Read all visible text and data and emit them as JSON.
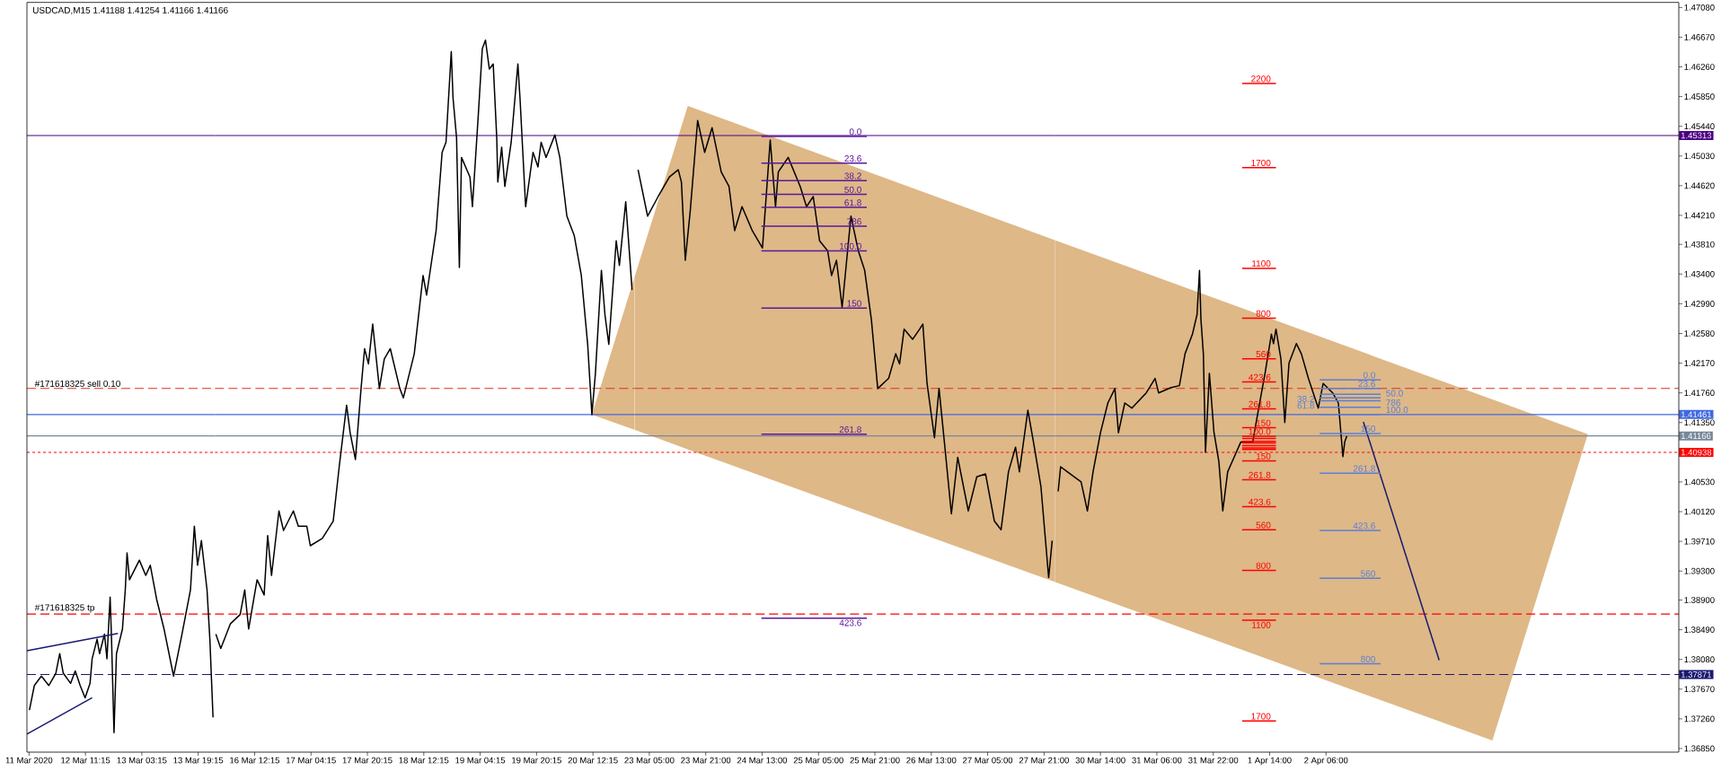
{
  "chart_data": [
    {
      "type": "line",
      "title": "USDCAD,M15 1.41188 1.41254 1.41166 1.41166",
      "xlim": [
        "2020-03-11T18:39",
        "2020-03-14T00:00"
      ],
      "ylim": [
        1.368,
        1.4715
      ],
      "tick_labels": "x",
      "xticks": [
        {
          "value": "2020-03-11T19:15",
          "label": "11 Mar 2020"
        },
        {
          "value": "2020-03-12T11:15",
          "label": "12 Mar 11:15"
        },
        {
          "value": "2020-03-13T03:15",
          "label": "13 Mar 03:15"
        },
        {
          "value": "2020-03-13T19:15",
          "label": "13 Mar 19:15"
        }
      ],
      "series": [
        {
          "color": "#000000",
          "x": [
            "2020-03-11T19:21",
            "2020-03-11T20:45",
            "2020-03-11T22:45",
            "2020-03-12T00:51",
            "2020-03-12T02:51",
            "2020-03-12T03:57",
            "2020-03-12T04:57",
            "2020-03-12T07:03",
            "2020-03-12T08:21",
            "2020-03-12T09:45",
            "2020-03-12T11:09",
            "2020-03-12T12:33",
            "2020-03-12T13:09",
            "2020-03-12T14:33",
            "2020-03-12T15:15",
            "2020-03-12T16:39",
            "2020-03-12T17:21",
            "2020-03-12T18:15",
            "2020-03-12T18:39",
            "2020-03-12T19:21",
            "2020-03-12T20:03",
            "2020-03-12T21:45",
            "2020-03-12T22:33",
            "2020-03-12T23:03",
            "2020-03-12T23:45",
            "2020-03-13T02:33",
            "2020-03-13T04:21",
            "2020-03-13T05:39",
            "2020-03-13T07:27",
            "2020-03-13T09:33",
            "2020-03-13T12:15",
            "2020-03-13T14:39",
            "2020-03-13T17:03",
            "2020-03-13T18:09",
            "2020-03-13T19:03",
            "2020-03-13T20:09",
            "2020-03-13T21:45",
            "2020-03-13T22:33",
            "2020-03-13T23:27"
          ],
          "values": [
            1.3738,
            1.3772,
            1.3785,
            1.3772,
            1.3789,
            1.3816,
            1.3789,
            1.3775,
            1.3792,
            1.3772,
            1.3755,
            1.3775,
            1.3809,
            1.3836,
            1.3816,
            1.3843,
            1.3809,
            1.3894,
            1.3836,
            1.3707,
            1.3816,
            1.385,
            1.3904,
            1.3955,
            1.3918,
            1.3945,
            1.3924,
            1.3938,
            1.3891,
            1.385,
            1.3785,
            1.3843,
            1.3904,
            1.3992,
            1.3938,
            1.3972,
            1.3904,
            1.3836,
            1.3728
          ]
        },
        {
          "color": "#191970",
          "x": [
            "2020-03-11T18:39",
            "2020-03-12T20:27"
          ],
          "values": [
            1.382,
            1.3844
          ]
        },
        {
          "color": "#191970",
          "x": [
            "2020-03-11T18:39",
            "2020-03-12T13:09"
          ],
          "values": [
            1.3705,
            1.3755
          ]
        }
      ],
      "ref_lines": [
        {
          "axis": "y",
          "value": 1.45313,
          "color": "#4b0082",
          "line_style": "solid"
        },
        {
          "axis": "y",
          "value": 1.41822,
          "label": "#171618325 sell 0.10",
          "color": "#e0301e",
          "line_style": "dashed"
        },
        {
          "axis": "y",
          "value": 1.41461,
          "color": "#4169e1",
          "line_style": "solid"
        },
        {
          "axis": "y",
          "value": 1.41166,
          "color": "#778899",
          "line_style": "solid"
        },
        {
          "axis": "y",
          "value": 1.40938,
          "color": "#ff0000",
          "line_style": "dotted"
        },
        {
          "axis": "y",
          "value": 1.38707,
          "label": "#171618325 tp",
          "color": "#ff0000",
          "line_style": "dashed"
        },
        {
          "axis": "y",
          "value": 1.37871,
          "color": "#191970",
          "line_style": "dashed"
        }
      ]
    },
    {
      "type": "line",
      "xlim": [
        "2020-03-16T01:00",
        "2020-03-21T00:00"
      ],
      "ylim": [
        1.368,
        1.4715
      ],
      "tick_labels": "x",
      "xticks": [
        {
          "value": "2020-03-16T12:15",
          "label": "16 Mar 12:15"
        },
        {
          "value": "2020-03-17T04:15",
          "label": "17 Mar 04:15"
        },
        {
          "value": "2020-03-17T20:15",
          "label": "17 Mar 20:15"
        },
        {
          "value": "2020-03-18T12:15",
          "label": "18 Mar 12:15"
        },
        {
          "value": "2020-03-19T04:15",
          "label": "19 Mar 04:15"
        },
        {
          "value": "2020-03-19T20:15",
          "label": "19 Mar 20:15"
        },
        {
          "value": "2020-03-20T12:15",
          "label": "20 Mar 12:15"
        }
      ],
      "series": [
        {
          "type": "area",
          "color": "#deb887",
          "x": [
            "2020-03-20T11:57",
            "2020-03-21T00:00"
          ],
          "values": [
            null,
            null
          ],
          "lower": [
            1.4146,
            1.4125
          ],
          "upper": [
            1.4146,
            1.4335
          ]
        },
        {
          "color": "#000000",
          "x": [
            "2020-03-16T01:15",
            "2020-03-16T02:39",
            "2020-03-16T05:21",
            "2020-03-16T08:09",
            "2020-03-16T09:27",
            "2020-03-16T10:33",
            "2020-03-16T12:57",
            "2020-03-16T14:57",
            "2020-03-16T15:57",
            "2020-03-16T17:03",
            "2020-03-16T19:09",
            "2020-03-16T20:27",
            "2020-03-16T23:15",
            "2020-03-17T00:39",
            "2020-03-17T03:03",
            "2020-03-17T04:03",
            "2020-03-17T07:27",
            "2020-03-17T10:33",
            "2020-03-17T12:15",
            "2020-03-17T14:21",
            "2020-03-17T15:21",
            "2020-03-17T16:51",
            "2020-03-17T18:27",
            "2020-03-17T19:27",
            "2020-03-17T20:33",
            "2020-03-17T21:45",
            "2020-03-17T23:39",
            "2020-03-18T01:03",
            "2020-03-18T02:45",
            "2020-03-18T05:27",
            "2020-03-18T06:27",
            "2020-03-18T09:33",
            "2020-03-18T12:03",
            "2020-03-18T13:03",
            "2020-03-18T15:45",
            "2020-03-18T17:27",
            "2020-03-18T18:33",
            "2020-03-18T20:03",
            "2020-03-18T20:33",
            "2020-03-18T21:33",
            "2020-03-18T22:21",
            "2020-03-18T22:57",
            "2020-03-19T01:21",
            "2020-03-19T02:03",
            "2020-03-19T03:45",
            "2020-03-19T04:51",
            "2020-03-19T05:45",
            "2020-03-19T06:51",
            "2020-03-19T07:57",
            "2020-03-19T08:57",
            "2020-03-19T09:15",
            "2020-03-19T10:21",
            "2020-03-19T11:15",
            "2020-03-19T13:03",
            "2020-03-19T14:57",
            "2020-03-19T15:33",
            "2020-03-19T17:09",
            "2020-03-19T19:15",
            "2020-03-19T20:39",
            "2020-03-19T21:33",
            "2020-03-19T22:57",
            "2020-03-20T01:27",
            "2020-03-20T02:51",
            "2020-03-20T04:51",
            "2020-03-20T06:57",
            "2020-03-20T08:57",
            "2020-03-20T10:45",
            "2020-03-20T11:57",
            "2020-03-20T12:57",
            "2020-03-20T14:39",
            "2020-03-20T15:39",
            "2020-03-20T16:45",
            "2020-03-20T18:51",
            "2020-03-20T19:45",
            "2020-03-20T21:33",
            "2020-03-20T23:21"
          ],
          "values": [
            1.3843,
            1.3823,
            1.3857,
            1.387,
            1.3904,
            1.385,
            1.3918,
            1.3897,
            1.3979,
            1.3924,
            1.4013,
            1.3986,
            1.4013,
            1.3992,
            1.3992,
            1.3965,
            1.3975,
            1.3999,
            1.4074,
            1.4159,
            1.4121,
            1.4084,
            1.4182,
            1.4237,
            1.4216,
            1.4271,
            1.4182,
            1.4223,
            1.4237,
            1.4182,
            1.4169,
            1.423,
            1.4338,
            1.4311,
            1.44,
            1.4508,
            1.4522,
            1.4647,
            1.4583,
            1.4528,
            1.4349,
            1.4501,
            1.4474,
            1.4433,
            1.4562,
            1.4651,
            1.4663,
            1.4623,
            1.463,
            1.4528,
            1.4467,
            1.4515,
            1.4461,
            1.4522,
            1.463,
            1.4583,
            1.4433,
            1.4508,
            1.4488,
            1.4522,
            1.4501,
            1.4532,
            1.4501,
            1.442,
            1.4393,
            1.4338,
            1.4243,
            1.4146,
            1.4203,
            1.4345,
            1.4284,
            1.4243,
            1.4386,
            1.4352,
            1.444,
            1.4318
          ]
        }
      ],
      "ref_lines": [
        {
          "axis": "y",
          "value": 1.45313,
          "color": "#4b0082",
          "line_style": "solid"
        },
        {
          "axis": "y",
          "value": 1.41822,
          "color": "#e0301e",
          "line_style": "dashed"
        },
        {
          "axis": "y",
          "value": 1.41461,
          "color": "#4169e1",
          "line_style": "solid"
        },
        {
          "axis": "y",
          "value": 1.41166,
          "color": "#778899",
          "line_style": "solid"
        },
        {
          "axis": "y",
          "value": 1.40938,
          "color": "#ff0000",
          "line_style": "dotted"
        },
        {
          "axis": "y",
          "value": 1.38707,
          "color": "#ff0000",
          "line_style": "dashed"
        },
        {
          "axis": "y",
          "value": 1.37871,
          "color": "#191970",
          "line_style": "dashed"
        }
      ]
    },
    {
      "type": "line",
      "xlim": [
        "2020-03-23T00:45",
        "2020-03-28T00:00"
      ],
      "ylim": [
        1.368,
        1.4715
      ],
      "tick_labels": "x",
      "xticks": [
        {
          "value": "2020-03-23T05:00",
          "label": "23 Mar 05:00"
        },
        {
          "value": "2020-03-23T21:00",
          "label": "23 Mar 21:00"
        },
        {
          "value": "2020-03-24T13:00",
          "label": "24 Mar 13:00"
        },
        {
          "value": "2020-03-25T05:00",
          "label": "25 Mar 05:00"
        },
        {
          "value": "2020-03-25T21:00",
          "label": "25 Mar 21:00"
        },
        {
          "value": "2020-03-26T13:00",
          "label": "26 Mar 13:00"
        },
        {
          "value": "2020-03-27T05:00",
          "label": "27 Mar 05:00"
        },
        {
          "value": "2020-03-27T21:00",
          "label": "27 Mar 21:00"
        }
      ],
      "series": [
        {
          "type": "area",
          "color": "#deb887",
          "x": [
            "2020-03-23T00:45",
            "2020-03-23T15:54",
            "2020-03-28T00:00"
          ],
          "values": [
            null,
            null,
            null
          ],
          "lower": [
            1.4125,
            1.4098,
            1.3915
          ],
          "upper": [
            1.4335,
            1.4572,
            1.4387
          ]
        },
        {
          "color": "#000000",
          "x": [
            "2020-03-23T01:48",
            "2020-03-23T04:30",
            "2020-03-23T07:30",
            "2020-03-23T10:42",
            "2020-03-23T13:12",
            "2020-03-23T14:06",
            "2020-03-23T15:12",
            "2020-03-23T16:36",
            "2020-03-23T18:42",
            "2020-03-23T20:42",
            "2020-03-23T22:48",
            "2020-03-24T01:24",
            "2020-03-24T03:36",
            "2020-03-24T05:12",
            "2020-03-24T07:18",
            "2020-03-24T10:12",
            "2020-03-24T13:06",
            "2020-03-24T15:18",
            "2020-03-24T16:48",
            "2020-03-24T17:36",
            "2020-03-24T20:24",
            "2020-03-24T23:48",
            "2020-03-25T01:36",
            "2020-03-25T03:30",
            "2020-03-25T05:18",
            "2020-03-25T07:36",
            "2020-03-25T08:42",
            "2020-03-25T10:06",
            "2020-03-25T11:42",
            "2020-03-25T14:12",
            "2020-03-25T16:18",
            "2020-03-25T18:06",
            "2020-03-25T20:00",
            "2020-03-25T21:48",
            "2020-03-26T00:54",
            "2020-03-26T02:54",
            "2020-03-26T04:00",
            "2020-03-26T05:18",
            "2020-03-26T07:42",
            "2020-03-26T09:42",
            "2020-03-26T10:36",
            "2020-03-26T11:48",
            "2020-03-26T13:54",
            "2020-03-26T15:12",
            "2020-03-26T17:00",
            "2020-03-26T18:42",
            "2020-03-26T20:30",
            "2020-03-26T23:30",
            "2020-03-27T01:54",
            "2020-03-27T04:24",
            "2020-03-27T06:54",
            "2020-03-27T08:48",
            "2020-03-27T10:54",
            "2020-03-27T12:54",
            "2020-03-27T14:00",
            "2020-03-27T16:24",
            "2020-03-27T18:00",
            "2020-03-27T20:06",
            "2020-03-27T22:18",
            "2020-03-27T23:18"
          ],
          "values": [
            1.4484,
            1.442,
            1.4447,
            1.4474,
            1.4484,
            1.4467,
            1.4359,
            1.4427,
            1.4552,
            1.4508,
            1.4542,
            1.4481,
            1.4461,
            1.44,
            1.4433,
            1.44,
            1.4376,
            1.4525,
            1.4433,
            1.4481,
            1.4501,
            1.4461,
            1.4433,
            1.4447,
            1.4386,
            1.4372,
            1.4338,
            1.4359,
            1.4294,
            1.442,
            1.4372,
            1.4345,
            1.4277,
            1.4182,
            1.4196,
            1.423,
            1.4216,
            1.4264,
            1.425,
            1.4264,
            1.4271,
            1.4189,
            1.4114,
            1.4182,
            1.4094,
            1.4009,
            1.4087,
            1.4013,
            1.406,
            1.4064,
            1.3999,
            1.3987,
            1.4067,
            1.4101,
            1.4067,
            1.4152,
            1.4108,
            1.4047,
            1.3921,
            1.3972
          ]
        },
        {
          "color": "#5a189a",
          "x": [
            "2020-03-24T12:48",
            "2020-03-25T18:42"
          ],
          "values": [
            1.453,
            1.453
          ]
        },
        {
          "color": "#5a189a",
          "x": [
            "2020-03-24T12:48",
            "2020-03-25T18:42"
          ],
          "values": [
            1.4493,
            1.4493
          ]
        },
        {
          "color": "#5a189a",
          "x": [
            "2020-03-24T12:48",
            "2020-03-25T18:42"
          ],
          "values": [
            1.4469,
            1.4469
          ]
        },
        {
          "color": "#5a189a",
          "x": [
            "2020-03-24T12:48",
            "2020-03-25T18:42"
          ],
          "values": [
            1.445,
            1.445
          ]
        },
        {
          "color": "#5a189a",
          "x": [
            "2020-03-24T12:48",
            "2020-03-25T18:42"
          ],
          "values": [
            1.4432,
            1.4432
          ]
        },
        {
          "color": "#5a189a",
          "x": [
            "2020-03-24T12:48",
            "2020-03-25T18:42"
          ],
          "values": [
            1.4406,
            1.4406
          ]
        },
        {
          "color": "#5a189a",
          "x": [
            "2020-03-24T12:48",
            "2020-03-25T18:42"
          ],
          "values": [
            1.4372,
            1.4372
          ]
        },
        {
          "color": "#5a189a",
          "x": [
            "2020-03-24T12:48",
            "2020-03-25T18:42"
          ],
          "values": [
            1.4293,
            1.4293
          ]
        },
        {
          "color": "#5a189a",
          "x": [
            "2020-03-24T12:48",
            "2020-03-25T18:42"
          ],
          "values": [
            1.4119,
            1.4119
          ]
        },
        {
          "color": "#5a189a",
          "x": [
            "2020-03-24T12:48",
            "2020-03-25T18:42"
          ],
          "values": [
            1.3865,
            1.3865
          ]
        }
      ],
      "ref_lines": [
        {
          "axis": "y",
          "value": 1.45313,
          "color": "#4b0082",
          "line_style": "solid"
        },
        {
          "axis": "y",
          "value": 1.41822,
          "color": "#e0301e",
          "line_style": "dashed"
        },
        {
          "axis": "y",
          "value": 1.41461,
          "color": "#4169e1",
          "line_style": "solid"
        },
        {
          "axis": "y",
          "value": 1.41166,
          "color": "#778899",
          "line_style": "solid"
        },
        {
          "axis": "y",
          "value": 1.40938,
          "color": "#ff0000",
          "line_style": "dotted"
        },
        {
          "axis": "y",
          "value": 1.38707,
          "color": "#ff0000",
          "line_style": "dashed"
        },
        {
          "axis": "y",
          "value": 1.37871,
          "color": "#191970",
          "line_style": "dashed"
        }
      ],
      "annotations": [
        {
          "text": "0.0",
          "x": "2020-03-25T18:42",
          "y": 1.453
        },
        {
          "text": "23.6",
          "x": "2020-03-25T18:42",
          "y": 1.4493
        },
        {
          "text": "38.2",
          "x": "2020-03-25T18:42",
          "y": 1.4469
        },
        {
          "text": "50.0",
          "x": "2020-03-25T18:42",
          "y": 1.445
        },
        {
          "text": "61.8",
          "x": "2020-03-25T18:42",
          "y": 1.4432
        },
        {
          "text": "786",
          "x": "2020-03-25T18:42",
          "y": 1.4406
        },
        {
          "text": "100.0",
          "x": "2020-03-25T18:42",
          "y": 1.4372
        },
        {
          "text": "150",
          "x": "2020-03-25T18:42",
          "y": 1.4293
        },
        {
          "text": "261.8",
          "x": "2020-03-25T18:42",
          "y": 1.4119
        },
        {
          "text": "423.6",
          "x": "2020-03-25T18:42",
          "y": 1.3865
        }
      ]
    },
    {
      "type": "line",
      "xlim": [
        "2020-03-30T01:00",
        "2020-04-06T10:06"
      ],
      "ylim": [
        1.368,
        1.4715
      ],
      "xticks": [
        {
          "value": "2020-03-30T14:00",
          "label": "30 Mar 14:00"
        },
        {
          "value": "2020-03-31T06:00",
          "label": "31 Mar 06:00"
        },
        {
          "value": "2020-03-31T22:00",
          "label": "31 Mar 22:00"
        },
        {
          "value": "2020-04-01T14:00",
          "label": "1 Apr 14:00"
        },
        {
          "value": "2020-04-02T06:00",
          "label": "2 Apr 06:00"
        }
      ],
      "yticks": [
        {
          "value": 1.4708,
          "label": "1.47080"
        },
        {
          "value": 1.4667,
          "label": "1.46670"
        },
        {
          "value": 1.4626,
          "label": "1.46260"
        },
        {
          "value": 1.4585,
          "label": "1.45850"
        },
        {
          "value": 1.4544,
          "label": "1.45440"
        },
        {
          "value": 1.4503,
          "label": "1.45030"
        },
        {
          "value": 1.4462,
          "label": "1.44620"
        },
        {
          "value": 1.4421,
          "label": "1.44210"
        },
        {
          "value": 1.4381,
          "label": "1.43810"
        },
        {
          "value": 1.434,
          "label": "1.43400"
        },
        {
          "value": 1.4299,
          "label": "1.42990"
        },
        {
          "value": 1.4258,
          "label": "1.42580"
        },
        {
          "value": 1.4217,
          "label": "1.42170"
        },
        {
          "value": 1.4176,
          "label": "1.41760"
        },
        {
          "value": 1.4135,
          "label": "1.41350"
        },
        {
          "value": 1.4053,
          "label": "1.40530"
        },
        {
          "value": 1.4012,
          "label": "1.40120"
        },
        {
          "value": 1.3971,
          "label": "1.39710"
        },
        {
          "value": 1.393,
          "label": "1.39300"
        },
        {
          "value": 1.389,
          "label": "1.38900"
        },
        {
          "value": 1.3849,
          "label": "1.38490"
        },
        {
          "value": 1.3808,
          "label": "1.38080"
        },
        {
          "value": 1.3767,
          "label": "1.37670"
        },
        {
          "value": 1.3726,
          "label": "1.37260"
        },
        {
          "value": 1.3685,
          "label": "1.36850"
        }
      ],
      "series": [
        {
          "type": "area",
          "color": "#deb887",
          "x": [
            "2020-03-30T01:00",
            "2020-04-04T05:12",
            "2020-04-05T08:18"
          ],
          "values": [
            null,
            null,
            null
          ],
          "lower": [
            1.3915,
            1.3696,
            1.4119
          ],
          "upper": [
            1.4387,
            1.4167,
            1.4119
          ]
        },
        {
          "color": "#000000",
          "x": [
            "2020-03-30T02:00",
            "2020-03-30T02:42",
            "2020-03-30T04:36",
            "2020-03-30T08:30",
            "2020-03-30T10:18",
            "2020-03-30T11:54",
            "2020-03-30T14:00",
            "2020-03-30T16:06",
            "2020-03-30T18:06",
            "2020-03-30T19:06",
            "2020-03-30T20:54",
            "2020-03-30T22:54",
            "2020-03-31T03:00",
            "2020-03-31T05:30",
            "2020-03-31T06:30",
            "2020-03-31T09:54",
            "2020-03-31T12:24",
            "2020-03-31T14:00",
            "2020-03-31T16:06",
            "2020-03-31T17:24",
            "2020-03-31T18:06",
            "2020-03-31T18:30",
            "2020-03-31T19:12",
            "2020-03-31T19:48",
            "2020-03-31T20:54",
            "2020-03-31T22:12",
            "2020-03-31T23:36",
            "2020-04-01T00:42",
            "2020-04-01T02:06",
            "2020-04-01T04:00",
            "2020-04-01T05:48",
            "2020-04-01T09:12",
            "2020-04-01T10:54",
            "2020-04-01T12:42",
            "2020-04-01T14:30",
            "2020-04-01T15:06",
            "2020-04-01T15:48",
            "2020-04-01T17:12",
            "2020-04-01T18:18",
            "2020-04-01T19:30",
            "2020-04-01T21:36",
            "2020-04-01T23:00",
            "2020-04-02T01:00",
            "2020-04-02T03:48",
            "2020-04-02T05:12",
            "2020-04-02T07:54",
            "2020-04-02T09:30",
            "2020-04-02T10:48",
            "2020-04-02T11:18",
            "2020-04-02T11:54"
          ],
          "values": [
            1.404,
            1.4074,
            1.4067,
            1.4053,
            1.4013,
            1.4067,
            1.4121,
            1.4162,
            1.4182,
            1.4121,
            1.4162,
            1.4155,
            1.4176,
            1.4196,
            1.4176,
            1.4183,
            1.4186,
            1.423,
            1.4257,
            1.4284,
            1.4345,
            1.4278,
            1.423,
            1.4094,
            1.4203,
            1.4122,
            1.4081,
            1.4013,
            1.4067,
            1.4088,
            1.4108,
            1.4108,
            1.4155,
            1.4203,
            1.4257,
            1.4244,
            1.4264,
            1.4223,
            1.4135,
            1.4217,
            1.4244,
            1.423,
            1.4196,
            1.4155,
            1.4189,
            1.4176,
            1.4162,
            1.4088,
            1.4108,
            1.41166
          ]
        },
        {
          "color": "#191970",
          "x": [
            "2020-04-02T16:36",
            "2020-04-03T14:06"
          ],
          "values": [
            1.4136,
            1.3807
          ]
        },
        {
          "color": "#ff0000",
          "x": [
            "2020-04-01T06:12",
            "2020-04-01T15:48"
          ],
          "values": [
            1.4603,
            1.4603
          ]
        },
        {
          "color": "#ff0000",
          "x": [
            "2020-04-01T06:12",
            "2020-04-01T15:48"
          ],
          "values": [
            1.4487,
            1.4487
          ]
        },
        {
          "color": "#ff0000",
          "x": [
            "2020-04-01T06:12",
            "2020-04-01T15:48"
          ],
          "values": [
            1.4348,
            1.4348
          ]
        },
        {
          "color": "#ff0000",
          "x": [
            "2020-04-01T06:12",
            "2020-04-01T15:48"
          ],
          "values": [
            1.4279,
            1.4279
          ]
        },
        {
          "color": "#ff0000",
          "x": [
            "2020-04-01T06:12",
            "2020-04-01T15:48"
          ],
          "values": [
            1.4223,
            1.4223
          ]
        },
        {
          "color": "#ff0000",
          "x": [
            "2020-04-01T06:12",
            "2020-04-01T15:48"
          ],
          "values": [
            1.4191,
            1.4191
          ]
        },
        {
          "color": "#ff0000",
          "x": [
            "2020-04-01T06:12",
            "2020-04-01T15:48"
          ],
          "values": [
            1.4154,
            1.4154
          ]
        },
        {
          "color": "#ff0000",
          "x": [
            "2020-04-01T06:12",
            "2020-04-01T15:48"
          ],
          "values": [
            1.4128,
            1.4128
          ]
        },
        {
          "color": "#ff0000",
          "x": [
            "2020-04-01T06:12",
            "2020-04-01T15:48"
          ],
          "values": [
            1.4116,
            1.4116
          ]
        },
        {
          "color": "#ff0000",
          "x": [
            "2020-04-01T06:12",
            "2020-04-01T15:48"
          ],
          "values": [
            1.4113,
            1.4113
          ]
        },
        {
          "color": "#ff0000",
          "x": [
            "2020-04-01T06:12",
            "2020-04-01T15:48"
          ],
          "values": [
            1.4109,
            1.4109
          ]
        },
        {
          "color": "#ff0000",
          "x": [
            "2020-04-01T06:12",
            "2020-04-01T15:48"
          ],
          "values": [
            1.4107,
            1.4107
          ]
        },
        {
          "color": "#ff0000",
          "x": [
            "2020-04-01T06:12",
            "2020-04-01T15:48"
          ],
          "values": [
            1.4103,
            1.4103
          ]
        },
        {
          "color": "#ff0000",
          "x": [
            "2020-04-01T06:12",
            "2020-04-01T15:48"
          ],
          "values": [
            1.41,
            1.41
          ]
        },
        {
          "color": "#ff0000",
          "x": [
            "2020-04-01T06:12",
            "2020-04-01T15:48"
          ],
          "values": [
            1.4098,
            1.4098
          ]
        },
        {
          "color": "#ff0000",
          "x": [
            "2020-04-01T06:12",
            "2020-04-01T15:48"
          ],
          "values": [
            1.4082,
            1.4082
          ]
        },
        {
          "color": "#ff0000",
          "x": [
            "2020-04-01T06:12",
            "2020-04-01T15:48"
          ],
          "values": [
            1.4056,
            1.4056
          ]
        },
        {
          "color": "#ff0000",
          "x": [
            "2020-04-01T06:12",
            "2020-04-01T15:48"
          ],
          "values": [
            1.4019,
            1.4019
          ]
        },
        {
          "color": "#ff0000",
          "x": [
            "2020-04-01T06:12",
            "2020-04-01T15:48"
          ],
          "values": [
            1.3987,
            1.3987
          ]
        },
        {
          "color": "#ff0000",
          "x": [
            "2020-04-01T06:12",
            "2020-04-01T15:48"
          ],
          "values": [
            1.3931,
            1.3931
          ]
        },
        {
          "color": "#ff0000",
          "x": [
            "2020-04-01T06:12",
            "2020-04-01T15:48"
          ],
          "values": [
            1.3862,
            1.3862
          ]
        },
        {
          "color": "#ff0000",
          "x": [
            "2020-04-01T06:12",
            "2020-04-01T15:48"
          ],
          "values": [
            1.3723,
            1.3723
          ]
        },
        {
          "color": "#5b7fd6",
          "x": [
            "2020-04-02T04:12",
            "2020-04-02T21:30"
          ],
          "values": [
            1.4194,
            1.4194
          ]
        },
        {
          "color": "#5b7fd6",
          "x": [
            "2020-04-02T04:12",
            "2020-04-02T21:30"
          ],
          "values": [
            1.4182,
            1.4182
          ]
        },
        {
          "color": "#5b7fd6",
          "x": [
            "2020-04-02T04:12",
            "2020-04-02T21:30"
          ],
          "values": [
            1.4174,
            1.4174
          ]
        },
        {
          "color": "#5b7fd6",
          "x": [
            "2020-04-02T04:12",
            "2020-04-02T21:30"
          ],
          "values": [
            1.4169,
            1.4169
          ]
        },
        {
          "color": "#5b7fd6",
          "x": [
            "2020-04-02T04:12",
            "2020-04-02T21:30"
          ],
          "values": [
            1.4165,
            1.4165
          ]
        },
        {
          "color": "#5b7fd6",
          "x": [
            "2020-04-02T04:12",
            "2020-04-02T21:30"
          ],
          "values": [
            1.4156,
            1.4156
          ]
        },
        {
          "color": "#5b7fd6",
          "x": [
            "2020-04-02T04:12",
            "2020-04-02T21:30"
          ],
          "values": [
            1.41461,
            1.41461
          ]
        },
        {
          "color": "#5b7fd6",
          "x": [
            "2020-04-02T04:12",
            "2020-04-02T21:30"
          ],
          "values": [
            1.412,
            1.412
          ]
        },
        {
          "color": "#5b7fd6",
          "x": [
            "2020-04-02T04:12",
            "2020-04-02T21:30"
          ],
          "values": [
            1.4065,
            1.4065
          ]
        },
        {
          "color": "#5b7fd6",
          "x": [
            "2020-04-02T04:12",
            "2020-04-02T21:30"
          ],
          "values": [
            1.3986,
            1.3986
          ]
        },
        {
          "color": "#5b7fd6",
          "x": [
            "2020-04-02T04:12",
            "2020-04-02T21:30"
          ],
          "values": [
            1.392,
            1.392
          ]
        },
        {
          "color": "#5b7fd6",
          "x": [
            "2020-04-02T04:12",
            "2020-04-02T21:30"
          ],
          "values": [
            1.3802,
            1.3802
          ]
        }
      ],
      "ref_lines": [
        {
          "axis": "y",
          "value": 1.45313,
          "label": "1.45313",
          "color": "#4b0082",
          "line_style": "solid"
        },
        {
          "axis": "y",
          "value": 1.41822,
          "color": "#e0301e",
          "line_style": "dashed"
        },
        {
          "axis": "y",
          "value": 1.41461,
          "label": "1.41461",
          "color": "#4169e1",
          "line_style": "solid"
        },
        {
          "axis": "y",
          "value": 1.41166,
          "label": "1.41166",
          "color": "#778899",
          "line_style": "solid"
        },
        {
          "axis": "y",
          "value": 1.40938,
          "label": "1.40938",
          "color": "#ff0000",
          "line_style": "dotted"
        },
        {
          "axis": "y",
          "value": 1.38707,
          "color": "#ff0000",
          "line_style": "dashed"
        },
        {
          "axis": "y",
          "value": 1.37871,
          "label": "1.37871",
          "color": "#191970",
          "line_style": "dashed"
        }
      ],
      "annotations": [
        {
          "text": "2200",
          "x": "2020-04-01T15:48",
          "y": 1.4603
        },
        {
          "text": "1700",
          "x": "2020-04-01T15:48",
          "y": 1.4487
        },
        {
          "text": "1100",
          "x": "2020-04-01T15:48",
          "y": 1.4348
        },
        {
          "text": "800",
          "x": "2020-04-01T15:48",
          "y": 1.4279
        },
        {
          "text": "560",
          "x": "2020-04-01T15:48",
          "y": 1.4223
        },
        {
          "text": "423.6",
          "x": "2020-04-01T15:48",
          "y": 1.4191
        },
        {
          "text": "261.8",
          "x": "2020-04-01T15:48",
          "y": 1.4154
        },
        {
          "text": "150",
          "x": "2020-04-01T15:48",
          "y": 1.4128
        },
        {
          "text": "100.0",
          "x": "2020-04-01T15:48",
          "y": 1.4116
        },
        {
          "text": "150",
          "x": "2020-04-01T15:48",
          "y": 1.4082
        },
        {
          "text": "261.8",
          "x": "2020-04-01T15:48",
          "y": 1.4056
        },
        {
          "text": "423.6",
          "x": "2020-04-01T15:48",
          "y": 1.4019
        },
        {
          "text": "560",
          "x": "2020-04-01T15:48",
          "y": 1.3987
        },
        {
          "text": "800",
          "x": "2020-04-01T15:48",
          "y": 1.3931
        },
        {
          "text": "1100",
          "x": "2020-04-01T15:48",
          "y": 1.3862
        },
        {
          "text": "1700",
          "x": "2020-04-01T15:48",
          "y": 1.3723
        },
        {
          "text": "0.0",
          "x": "2020-04-02T21:30",
          "y": 1.4194
        },
        {
          "text": "23.6",
          "x": "2020-04-02T21:30",
          "y": 1.4182
        },
        {
          "text": "38.2",
          "x": "2020-04-02T04:12",
          "y": 1.4174
        },
        {
          "text": "50.0",
          "x": "2020-04-02T21:30",
          "y": 1.4169
        },
        {
          "text": "61.8",
          "x": "2020-04-02T04:12",
          "y": 1.4165
        },
        {
          "text": "786",
          "x": "2020-04-02T21:30",
          "y": 1.4156
        },
        {
          "text": "100.0",
          "x": "2020-04-02T21:30",
          "y": 1.41461
        },
        {
          "text": "150",
          "x": "2020-04-02T21:30",
          "y": 1.412
        },
        {
          "text": "261.8",
          "x": "2020-04-02T21:30",
          "y": 1.4065
        },
        {
          "text": "423.6",
          "x": "2020-04-02T21:30",
          "y": 1.3986
        },
        {
          "text": "560",
          "x": "2020-04-02T21:30",
          "y": 1.392
        },
        {
          "text": "800",
          "x": "2020-04-02T21:30",
          "y": 1.3802
        }
      ]
    }
  ]
}
